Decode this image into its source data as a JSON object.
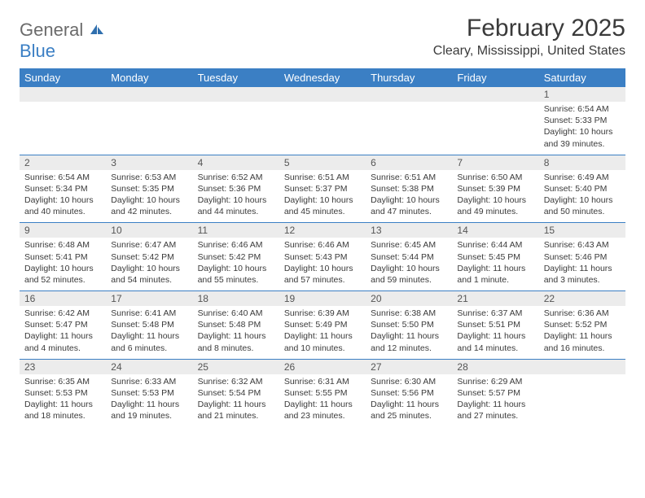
{
  "logo": {
    "part1": "General",
    "part2": "Blue"
  },
  "title": "February 2025",
  "location": "Cleary, Mississippi, United States",
  "weekdays": [
    "Sunday",
    "Monday",
    "Tuesday",
    "Wednesday",
    "Thursday",
    "Friday",
    "Saturday"
  ],
  "colors": {
    "header_bg": "#3b7fc4",
    "daynum_bg": "#ececec",
    "divider": "#3b7fc4"
  },
  "weeks": [
    [
      {
        "n": "",
        "sunrise": "",
        "sunset": "",
        "daylight": ""
      },
      {
        "n": "",
        "sunrise": "",
        "sunset": "",
        "daylight": ""
      },
      {
        "n": "",
        "sunrise": "",
        "sunset": "",
        "daylight": ""
      },
      {
        "n": "",
        "sunrise": "",
        "sunset": "",
        "daylight": ""
      },
      {
        "n": "",
        "sunrise": "",
        "sunset": "",
        "daylight": ""
      },
      {
        "n": "",
        "sunrise": "",
        "sunset": "",
        "daylight": ""
      },
      {
        "n": "1",
        "sunrise": "Sunrise: 6:54 AM",
        "sunset": "Sunset: 5:33 PM",
        "daylight": "Daylight: 10 hours and 39 minutes."
      }
    ],
    [
      {
        "n": "2",
        "sunrise": "Sunrise: 6:54 AM",
        "sunset": "Sunset: 5:34 PM",
        "daylight": "Daylight: 10 hours and 40 minutes."
      },
      {
        "n": "3",
        "sunrise": "Sunrise: 6:53 AM",
        "sunset": "Sunset: 5:35 PM",
        "daylight": "Daylight: 10 hours and 42 minutes."
      },
      {
        "n": "4",
        "sunrise": "Sunrise: 6:52 AM",
        "sunset": "Sunset: 5:36 PM",
        "daylight": "Daylight: 10 hours and 44 minutes."
      },
      {
        "n": "5",
        "sunrise": "Sunrise: 6:51 AM",
        "sunset": "Sunset: 5:37 PM",
        "daylight": "Daylight: 10 hours and 45 minutes."
      },
      {
        "n": "6",
        "sunrise": "Sunrise: 6:51 AM",
        "sunset": "Sunset: 5:38 PM",
        "daylight": "Daylight: 10 hours and 47 minutes."
      },
      {
        "n": "7",
        "sunrise": "Sunrise: 6:50 AM",
        "sunset": "Sunset: 5:39 PM",
        "daylight": "Daylight: 10 hours and 49 minutes."
      },
      {
        "n": "8",
        "sunrise": "Sunrise: 6:49 AM",
        "sunset": "Sunset: 5:40 PM",
        "daylight": "Daylight: 10 hours and 50 minutes."
      }
    ],
    [
      {
        "n": "9",
        "sunrise": "Sunrise: 6:48 AM",
        "sunset": "Sunset: 5:41 PM",
        "daylight": "Daylight: 10 hours and 52 minutes."
      },
      {
        "n": "10",
        "sunrise": "Sunrise: 6:47 AM",
        "sunset": "Sunset: 5:42 PM",
        "daylight": "Daylight: 10 hours and 54 minutes."
      },
      {
        "n": "11",
        "sunrise": "Sunrise: 6:46 AM",
        "sunset": "Sunset: 5:42 PM",
        "daylight": "Daylight: 10 hours and 55 minutes."
      },
      {
        "n": "12",
        "sunrise": "Sunrise: 6:46 AM",
        "sunset": "Sunset: 5:43 PM",
        "daylight": "Daylight: 10 hours and 57 minutes."
      },
      {
        "n": "13",
        "sunrise": "Sunrise: 6:45 AM",
        "sunset": "Sunset: 5:44 PM",
        "daylight": "Daylight: 10 hours and 59 minutes."
      },
      {
        "n": "14",
        "sunrise": "Sunrise: 6:44 AM",
        "sunset": "Sunset: 5:45 PM",
        "daylight": "Daylight: 11 hours and 1 minute."
      },
      {
        "n": "15",
        "sunrise": "Sunrise: 6:43 AM",
        "sunset": "Sunset: 5:46 PM",
        "daylight": "Daylight: 11 hours and 3 minutes."
      }
    ],
    [
      {
        "n": "16",
        "sunrise": "Sunrise: 6:42 AM",
        "sunset": "Sunset: 5:47 PM",
        "daylight": "Daylight: 11 hours and 4 minutes."
      },
      {
        "n": "17",
        "sunrise": "Sunrise: 6:41 AM",
        "sunset": "Sunset: 5:48 PM",
        "daylight": "Daylight: 11 hours and 6 minutes."
      },
      {
        "n": "18",
        "sunrise": "Sunrise: 6:40 AM",
        "sunset": "Sunset: 5:48 PM",
        "daylight": "Daylight: 11 hours and 8 minutes."
      },
      {
        "n": "19",
        "sunrise": "Sunrise: 6:39 AM",
        "sunset": "Sunset: 5:49 PM",
        "daylight": "Daylight: 11 hours and 10 minutes."
      },
      {
        "n": "20",
        "sunrise": "Sunrise: 6:38 AM",
        "sunset": "Sunset: 5:50 PM",
        "daylight": "Daylight: 11 hours and 12 minutes."
      },
      {
        "n": "21",
        "sunrise": "Sunrise: 6:37 AM",
        "sunset": "Sunset: 5:51 PM",
        "daylight": "Daylight: 11 hours and 14 minutes."
      },
      {
        "n": "22",
        "sunrise": "Sunrise: 6:36 AM",
        "sunset": "Sunset: 5:52 PM",
        "daylight": "Daylight: 11 hours and 16 minutes."
      }
    ],
    [
      {
        "n": "23",
        "sunrise": "Sunrise: 6:35 AM",
        "sunset": "Sunset: 5:53 PM",
        "daylight": "Daylight: 11 hours and 18 minutes."
      },
      {
        "n": "24",
        "sunrise": "Sunrise: 6:33 AM",
        "sunset": "Sunset: 5:53 PM",
        "daylight": "Daylight: 11 hours and 19 minutes."
      },
      {
        "n": "25",
        "sunrise": "Sunrise: 6:32 AM",
        "sunset": "Sunset: 5:54 PM",
        "daylight": "Daylight: 11 hours and 21 minutes."
      },
      {
        "n": "26",
        "sunrise": "Sunrise: 6:31 AM",
        "sunset": "Sunset: 5:55 PM",
        "daylight": "Daylight: 11 hours and 23 minutes."
      },
      {
        "n": "27",
        "sunrise": "Sunrise: 6:30 AM",
        "sunset": "Sunset: 5:56 PM",
        "daylight": "Daylight: 11 hours and 25 minutes."
      },
      {
        "n": "28",
        "sunrise": "Sunrise: 6:29 AM",
        "sunset": "Sunset: 5:57 PM",
        "daylight": "Daylight: 11 hours and 27 minutes."
      },
      {
        "n": "",
        "sunrise": "",
        "sunset": "",
        "daylight": ""
      }
    ]
  ]
}
